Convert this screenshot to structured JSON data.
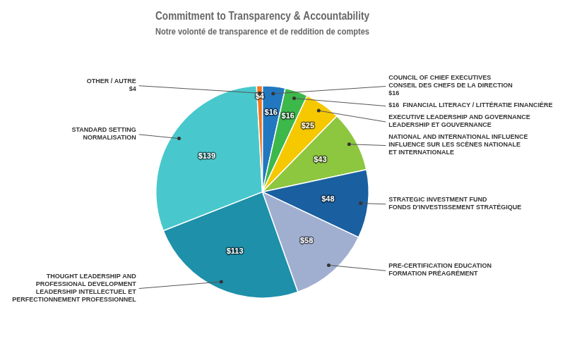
{
  "chart_data": {
    "type": "pie",
    "title": "Commitment to Transparency & Accountability",
    "subtitle": "Notre volonté de transparence et de reddition de comptes",
    "categories": [
      [
        "COUNCIL OF CHIEF EXECUTIVES",
        "CONSEIL DES CHEFS DE LA DIRECTION",
        "$16"
      ],
      [
        "$16  FINANCIAL LITERACY / LITTÉRATIE FINANCIÈRE"
      ],
      [
        "EXECUTIVE LEADERSHIP AND GOVERNANCE",
        "LEADERSHIP ET GOUVERNANCE"
      ],
      [
        "NATIONAL AND INTERNATIONAL INFLUENCE",
        "INFLUENCE SUR LES SCÈNES NATIONALE",
        "ET INTERNATIONALE"
      ],
      [
        "STRATEGIC INVESTMENT FUND",
        "FONDS D'INVESTISSEMENT STRATÉGIQUE"
      ],
      [
        "PRE-CERTIFICATION EDUCATION",
        "FORMATION PRÉAGRÉMENT"
      ],
      [
        "THOUGHT LEADERSHIP AND",
        "PROFESSIONAL DEVELOPMENT",
        "LEADERSHIP INTELLECTUEL ET",
        "PERFECTIONNEMENT PROFESSIONNEL"
      ],
      [
        "STANDARD SETTING",
        "NORMALISATION"
      ],
      [
        "OTHER / AUTRE",
        "$4"
      ]
    ],
    "values": [
      16,
      16,
      25,
      43,
      48,
      58,
      113,
      139,
      4
    ],
    "value_labels": [
      "$16",
      "$16",
      "$25",
      "$43",
      "$48",
      "$58",
      "$113",
      "$139",
      "$4"
    ],
    "colors": [
      "#2278c0",
      "#3db84a",
      "#f5c800",
      "#8dc63f",
      "#1a5fa0",
      "#a0afd0",
      "#1e90aa",
      "#48c8cc",
      "#f07820"
    ],
    "data_labels": true
  }
}
